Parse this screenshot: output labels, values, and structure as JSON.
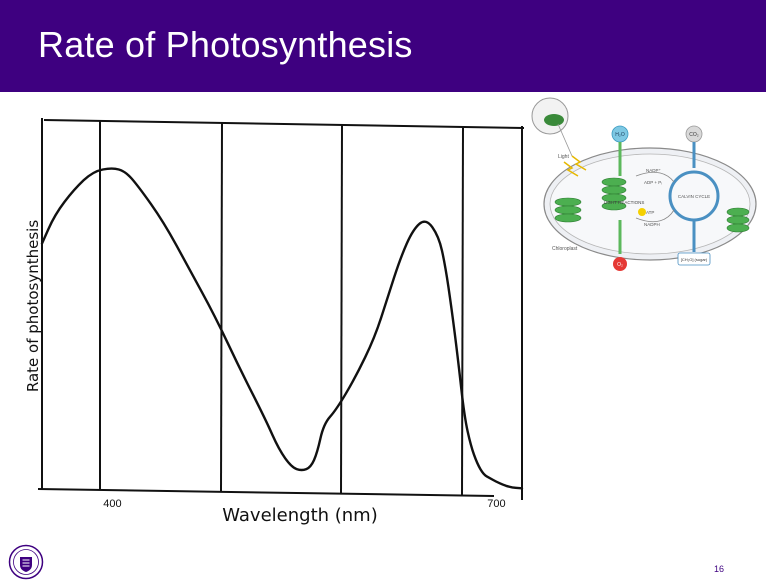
{
  "slide": {
    "title": "Rate of Photosynthesis",
    "page_number": "16",
    "accent_color": "#3e0080"
  },
  "chart_data": {
    "type": "line",
    "title": "",
    "xlabel": "Wavelength (nm)",
    "ylabel": "Rate of photosynthesis",
    "x_ticks": [
      400,
      700
    ],
    "xlim": [
      345,
      720
    ],
    "ylim": [
      0,
      100
    ],
    "grid": true,
    "series": [
      {
        "x": [
          345,
          355,
          370,
          385,
          400,
          410,
          420,
          440,
          460,
          480,
          500,
          520,
          530,
          540,
          548,
          555,
          560,
          565,
          575,
          590,
          605,
          615,
          625,
          635,
          645,
          655,
          660,
          665,
          670,
          675,
          680,
          685,
          690,
          695,
          700,
          705,
          710,
          715,
          720
        ],
        "y": [
          68,
          76,
          83,
          88,
          89,
          88,
          84,
          74,
          61,
          48,
          33,
          19,
          11,
          6,
          5,
          6,
          10,
          18,
          22,
          31,
          42,
          53,
          64,
          72,
          75,
          70,
          62,
          50,
          36,
          20,
          12,
          7,
          4,
          3,
          2,
          1.2,
          0.6,
          0.3,
          0.2
        ]
      }
    ]
  },
  "diagram": {
    "labels": {
      "h2o": "H₂O",
      "co2": "CO₂",
      "light": "Light",
      "light_reactions": "LIGHT REACTIONS",
      "calvin_cycle": "CALVIN CYCLE",
      "nadp": "NADP⁺",
      "adp": "ADP + Pᵢ",
      "atp": "ATP",
      "nadph": "NADPH",
      "chloroplast": "Chloroplast",
      "o2": "O₂",
      "sugar": "[CH₂O] (sugar)"
    }
  }
}
